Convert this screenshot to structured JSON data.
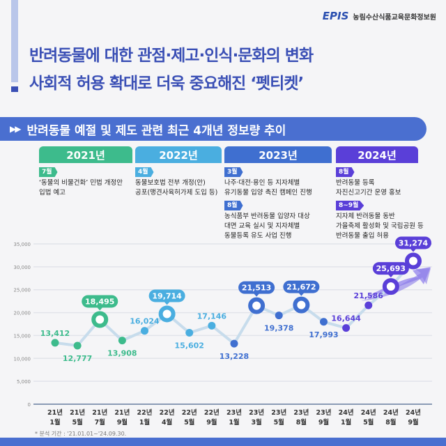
{
  "header": {
    "logo": "EPIS",
    "org": "농림수산식품교육문화정보원",
    "title_line1": "반려동물에 대한 관점·제고·인식·문화의 변화",
    "title_line2": "사회적 허용 확대로 더욱 중요해진 ‘펫티켓’"
  },
  "section_title": "반려동물 예절 및 제도 관련 최근 4개년 정보량 추이",
  "years": [
    {
      "label": "2021년",
      "color": "#3dbb8c",
      "events": [
        {
          "month": "7월",
          "text": "‘동물의 비물건화’ 민법 개정안\n입법 예고"
        }
      ]
    },
    {
      "label": "2022년",
      "color": "#4aaee0",
      "events": [
        {
          "month": "4월",
          "text": "동물보호법 전부 개정(안)\n공포(맹견사육허가제 도입 등)"
        }
      ]
    },
    {
      "label": "2023년",
      "color": "#3f6fd0",
      "events": [
        {
          "month": "3월",
          "text": "나주·대전·용인 등 지자체별\n유기동물 입양 촉진 캠페인 진행"
        },
        {
          "month": "8월",
          "text": "농식품부 반려동물 입양자 대상\n대면 교육 실시 및 지자체별\n동물등록 유도 사업 진행"
        }
      ]
    },
    {
      "label": "2024년",
      "color": "#5a3fd8",
      "events": [
        {
          "month": "8월",
          "text": "반려동물 등록\n자진신고기간 운영 홍보"
        },
        {
          "month": "8~9월",
          "text": "지자체 반려동물 동반\n가을축제 활성화 및 국립공원 등\n반려동물 출입 허용"
        }
      ]
    }
  ],
  "chart_data": {
    "type": "line",
    "categories": [
      "21년 1월",
      "21년 5월",
      "21년 7월",
      "21년 9월",
      "22년 1월",
      "22년 4월",
      "22년 5월",
      "22년 9월",
      "23년 1월",
      "23년 3월",
      "23년 5월",
      "23년 8월",
      "23년 9월",
      "24년 1월",
      "24년 5월",
      "24년 8월",
      "24년 9월"
    ],
    "values": [
      13412,
      12777,
      18495,
      13908,
      16024,
      19714,
      15602,
      17146,
      13228,
      21513,
      19378,
      21672,
      17993,
      16644,
      21586,
      25693,
      31274
    ],
    "labels": [
      "13,412",
      "12,777",
      "18,495",
      "13,908",
      "16,024",
      "19,714",
      "15,602",
      "17,146",
      "13,228",
      "21,513",
      "19,378",
      "21,672",
      "17,993",
      "16,644",
      "21,586",
      "25,693",
      "31,274"
    ],
    "highlighted": [
      2,
      5,
      9,
      11,
      15,
      16
    ],
    "ylim": [
      0,
      35000
    ],
    "yticks": [
      "0",
      "5,000",
      "10,000",
      "15,000",
      "20,000",
      "25,000",
      "30,000",
      "35,000"
    ],
    "grid": true,
    "colors_by_year": [
      "#3dbb8c",
      "#4aaee0",
      "#3f6fd0",
      "#5a3fd8"
    ]
  },
  "note": "* 분석 기간 : '21.01.01~'24.09.30."
}
